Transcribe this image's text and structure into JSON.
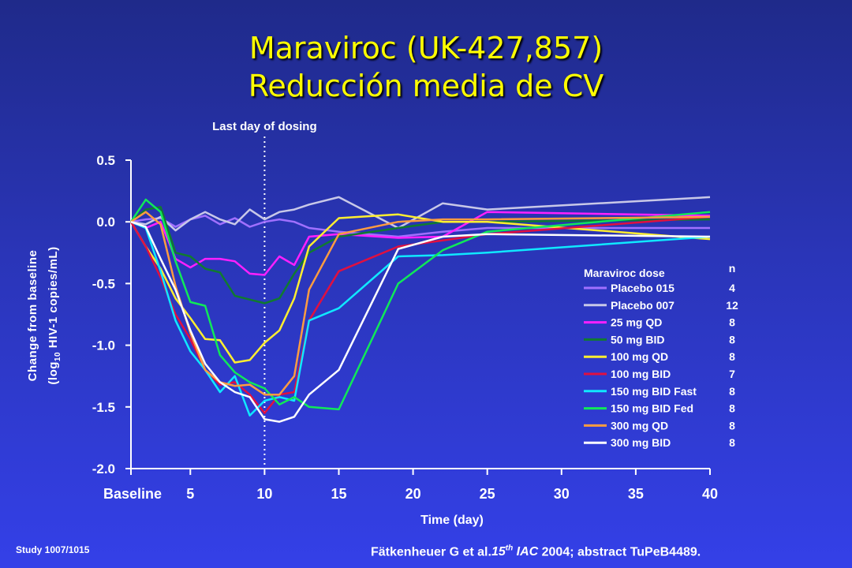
{
  "slide": {
    "title_line1": "Maraviroc (UK-427,857)",
    "title_line2": "Reducción media de CV",
    "study": "Study 1007/1015",
    "citation_author": "Fätkenheuer G et al.",
    "citation_num": "15",
    "citation_sup": "th",
    "citation_conf": " IAC",
    "citation_rest": " 2004; abstract TuPeB4489."
  },
  "chart_data": {
    "type": "line",
    "annotation": "Last day of dosing",
    "annotation_x": 10,
    "xlabel": "Time (day)",
    "ylabel_line1": "Change from baseline",
    "ylabel_line2_pre": "(log",
    "ylabel_line2_sub": "10",
    "ylabel_line2_post": " HIV-1 copies/mL)",
    "xlim": [
      1,
      40
    ],
    "ylim": [
      -2.0,
      0.5
    ],
    "xticks": [
      {
        "value": 1,
        "label": "Baseline"
      },
      {
        "value": 5,
        "label": "5"
      },
      {
        "value": 10,
        "label": "10"
      },
      {
        "value": 15,
        "label": "15"
      },
      {
        "value": 20,
        "label": "20"
      },
      {
        "value": 25,
        "label": "25"
      },
      {
        "value": 30,
        "label": "30"
      },
      {
        "value": 35,
        "label": "35"
      },
      {
        "value": 40,
        "label": "40"
      }
    ],
    "yticks": [
      {
        "value": 0.5,
        "label": "0.5"
      },
      {
        "value": 0.0,
        "label": "0.0"
      },
      {
        "value": -0.5,
        "label": "-0.5"
      },
      {
        "value": -1.0,
        "label": "-1.0"
      },
      {
        "value": -1.5,
        "label": "-1.5"
      },
      {
        "value": -2.0,
        "label": "-2.0"
      }
    ],
    "legend_title": "Maraviroc dose",
    "legend_n_header": "n",
    "legend_position": "right",
    "series": [
      {
        "name": "Placebo 015",
        "n": "4",
        "color": "#a070ff",
        "x": [
          1,
          2,
          3,
          4,
          5,
          6,
          7,
          8,
          9,
          10,
          11,
          12,
          13,
          15,
          19,
          22,
          25,
          40
        ],
        "y": [
          0,
          0.02,
          0.03,
          -0.04,
          0.02,
          0.05,
          -0.02,
          0.03,
          -0.04,
          0,
          0.02,
          0.0,
          -0.05,
          -0.08,
          -0.12,
          -0.08,
          -0.05,
          -0.05
        ]
      },
      {
        "name": "Placebo 007",
        "n": "12",
        "color": "#c8c8e8",
        "x": [
          1,
          2,
          3,
          4,
          5,
          6,
          7,
          8,
          9,
          10,
          11,
          12,
          13,
          15,
          19,
          22,
          25,
          40
        ],
        "y": [
          0,
          -0.02,
          0.04,
          -0.07,
          0.02,
          0.08,
          0.02,
          -0.02,
          0.1,
          0.02,
          0.08,
          0.1,
          0.14,
          0.2,
          -0.05,
          0.15,
          0.1,
          0.2
        ]
      },
      {
        "name": "25 mg QD",
        "n": "8",
        "color": "#ff20ff",
        "x": [
          1,
          2,
          3,
          4,
          5,
          6,
          7,
          8,
          9,
          10,
          11,
          12,
          13,
          15,
          19,
          22,
          25,
          40
        ],
        "y": [
          0,
          -0.05,
          0.0,
          -0.3,
          -0.37,
          -0.3,
          -0.3,
          -0.32,
          -0.42,
          -0.43,
          -0.28,
          -0.35,
          -0.12,
          -0.1,
          -0.13,
          -0.12,
          0.08,
          0.05
        ]
      },
      {
        "name": "50 mg BID",
        "n": "8",
        "color": "#107a30",
        "x": [
          1,
          2,
          3,
          4,
          5,
          6,
          7,
          8,
          9,
          10,
          11,
          12,
          13,
          15,
          19,
          22,
          25,
          40
        ],
        "y": [
          0,
          0.1,
          0.12,
          -0.25,
          -0.28,
          -0.38,
          -0.41,
          -0.6,
          -0.63,
          -0.66,
          -0.62,
          -0.42,
          -0.25,
          -0.12,
          -0.05,
          0.0,
          0.0,
          0.02
        ]
      },
      {
        "name": "100 mg QD",
        "n": "8",
        "color": "#ffee30",
        "x": [
          1,
          2,
          3,
          4,
          5,
          6,
          7,
          8,
          9,
          10,
          11,
          12,
          13,
          15,
          19,
          22,
          25,
          40
        ],
        "y": [
          0,
          -0.2,
          -0.38,
          -0.62,
          -0.78,
          -0.95,
          -0.96,
          -1.14,
          -1.12,
          -0.98,
          -0.88,
          -0.62,
          -0.2,
          0.03,
          0.06,
          0.0,
          0.0,
          -0.14
        ]
      },
      {
        "name": "100 mg BID",
        "n": "7",
        "color": "#e01040",
        "x": [
          1,
          2,
          3,
          4,
          5,
          6,
          7,
          8,
          9,
          10,
          11,
          12,
          13,
          15,
          19,
          22,
          25,
          40
        ],
        "y": [
          0,
          -0.2,
          -0.45,
          -0.75,
          -0.95,
          -1.2,
          -1.32,
          -1.3,
          -1.4,
          -1.55,
          -1.4,
          -1.38,
          -0.8,
          -0.4,
          -0.2,
          -0.15,
          -0.1,
          0.04
        ]
      },
      {
        "name": "150 mg BID Fast",
        "n": "8",
        "color": "#10e8ff",
        "x": [
          1,
          2,
          3,
          4,
          5,
          6,
          7,
          8,
          9,
          10,
          11,
          12,
          13,
          15,
          19,
          22,
          25,
          40
        ],
        "y": [
          0,
          -0.05,
          -0.4,
          -0.8,
          -1.05,
          -1.2,
          -1.38,
          -1.25,
          -1.57,
          -1.45,
          -1.42,
          -1.45,
          -0.8,
          -0.7,
          -0.28,
          -0.27,
          -0.25,
          -0.12
        ]
      },
      {
        "name": "150 mg BID Fed",
        "n": "8",
        "color": "#10e858",
        "x": [
          1,
          2,
          3,
          4,
          5,
          6,
          7,
          8,
          9,
          10,
          11,
          12,
          13,
          15,
          19,
          22,
          25,
          40
        ],
        "y": [
          0,
          0.18,
          0.08,
          -0.32,
          -0.65,
          -0.68,
          -1.08,
          -1.22,
          -1.3,
          -1.35,
          -1.48,
          -1.42,
          -1.5,
          -1.52,
          -0.5,
          -0.23,
          -0.08,
          0.08
        ]
      },
      {
        "name": "300 mg QD",
        "n": "8",
        "color": "#ff9c40",
        "x": [
          1,
          2,
          3,
          4,
          5,
          6,
          7,
          8,
          9,
          10,
          11,
          12,
          13,
          15,
          19,
          22,
          25,
          40
        ],
        "y": [
          0,
          0.08,
          -0.02,
          -0.52,
          -0.9,
          -1.2,
          -1.3,
          -1.33,
          -1.32,
          -1.4,
          -1.4,
          -1.25,
          -0.55,
          -0.1,
          0.0,
          0.02,
          0.02,
          0.04
        ]
      },
      {
        "name": "300 mg BID",
        "n": "8",
        "color": "#ffffff",
        "x": [
          1,
          2,
          3,
          4,
          5,
          6,
          7,
          8,
          9,
          10,
          11,
          12,
          13,
          15,
          19,
          22,
          25,
          40
        ],
        "y": [
          0,
          -0.04,
          -0.3,
          -0.55,
          -0.88,
          -1.15,
          -1.3,
          -1.38,
          -1.42,
          -1.6,
          -1.62,
          -1.58,
          -1.4,
          -1.2,
          -0.22,
          -0.12,
          -0.1,
          -0.12
        ]
      }
    ]
  }
}
